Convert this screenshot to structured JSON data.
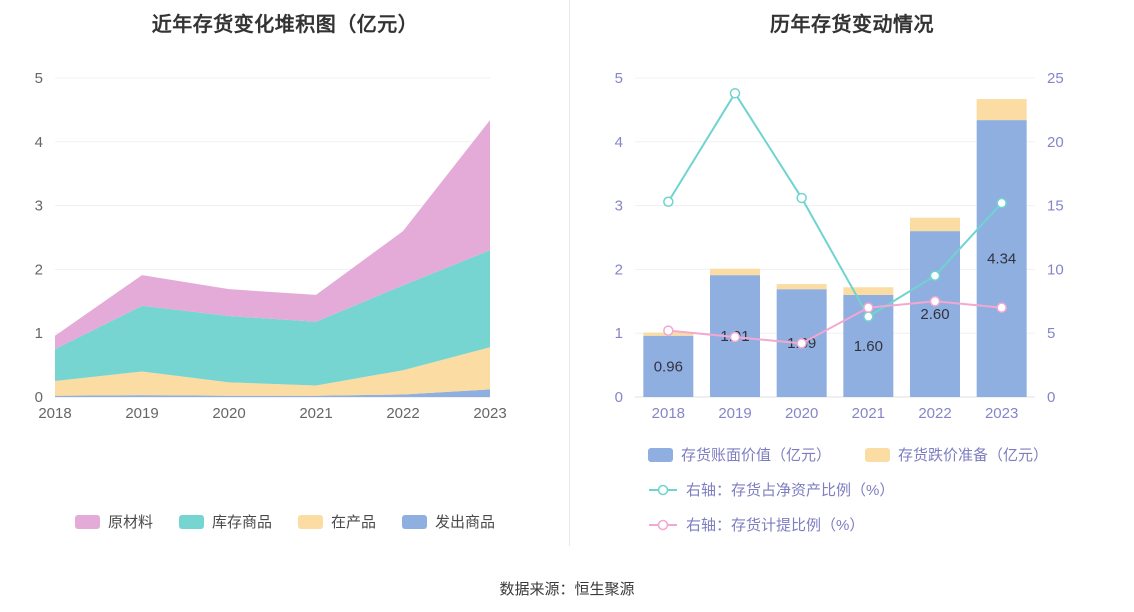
{
  "page": {
    "footer_source": "数据来源：恒生聚源"
  },
  "colors": {
    "title": "#333333",
    "left_axis_label": "#666666",
    "right_axis_label": "#8585cb",
    "legend_text_left": "#4a4a4a",
    "legend_text_right": "#7d7dc1",
    "grid_line": "#f0f0f5",
    "axis_line": "#e0e0e8",
    "divider": "#e8e8ee",
    "bar_label": "#33333f"
  },
  "chart_data": [
    {
      "id": "inventory-stacked-area",
      "type": "area",
      "title": "近年存货变化堆积图（亿元）",
      "x": [
        "2018",
        "2019",
        "2020",
        "2021",
        "2022",
        "2023"
      ],
      "stack": "bottom-to-top",
      "series": [
        {
          "name": "发出商品",
          "color": "#8fafe0",
          "values": [
            0.02,
            0.03,
            0.02,
            0.02,
            0.04,
            0.12
          ]
        },
        {
          "name": "在产品",
          "color": "#fbdca3",
          "values": [
            0.23,
            0.37,
            0.21,
            0.16,
            0.38,
            0.66
          ]
        },
        {
          "name": "库存商品",
          "color": "#76d4d1",
          "values": [
            0.5,
            1.03,
            1.04,
            1.0,
            1.33,
            1.52
          ]
        },
        {
          "name": "原材料",
          "color": "#e4abd8",
          "values": [
            0.21,
            0.48,
            0.42,
            0.42,
            0.85,
            2.04
          ]
        }
      ],
      "totals": [
        0.96,
        1.91,
        1.69,
        1.6,
        2.6,
        4.34
      ],
      "legend": [
        "原材料",
        "库存商品",
        "在产品",
        "发出商品"
      ],
      "ylim": [
        0,
        5
      ],
      "yticks": [
        0,
        1,
        2,
        3,
        4,
        5
      ],
      "grid": true,
      "legend_position": "bottom"
    },
    {
      "id": "inventory-bar-line",
      "type": "bar",
      "title": "历年存货变动情况",
      "categories": [
        "2018",
        "2019",
        "2020",
        "2021",
        "2022",
        "2023"
      ],
      "bar_series": [
        {
          "name": "存货账面价值（亿元）",
          "color": "#8fafe0",
          "axis": "left",
          "values": [
            0.96,
            1.91,
            1.69,
            1.6,
            2.6,
            4.34
          ],
          "labels": [
            "0.96",
            "1.91",
            "1.69",
            "1.60",
            "2.60",
            "4.34"
          ]
        },
        {
          "name": "存货跌价准备（亿元）",
          "color": "#fbdca3",
          "axis": "left",
          "values": [
            0.05,
            0.1,
            0.08,
            0.12,
            0.21,
            0.33
          ]
        }
      ],
      "line_series": [
        {
          "name": "右轴：存货占净资产比例（%）",
          "color": "#6fd4cf",
          "axis": "right",
          "values": [
            15.3,
            23.8,
            15.6,
            6.3,
            9.5,
            15.2
          ]
        },
        {
          "name": "右轴：存货计提比例（%）",
          "color": "#f2a8d0",
          "axis": "right",
          "values": [
            5.2,
            4.7,
            4.2,
            7.0,
            7.5,
            7.0
          ]
        }
      ],
      "left_ylim": [
        0,
        5
      ],
      "left_yticks": [
        0,
        1,
        2,
        3,
        4,
        5
      ],
      "right_ylim": [
        0,
        25
      ],
      "right_yticks": [
        0,
        5,
        10,
        15,
        20,
        25
      ],
      "grid": true,
      "legend_position": "bottom"
    }
  ]
}
